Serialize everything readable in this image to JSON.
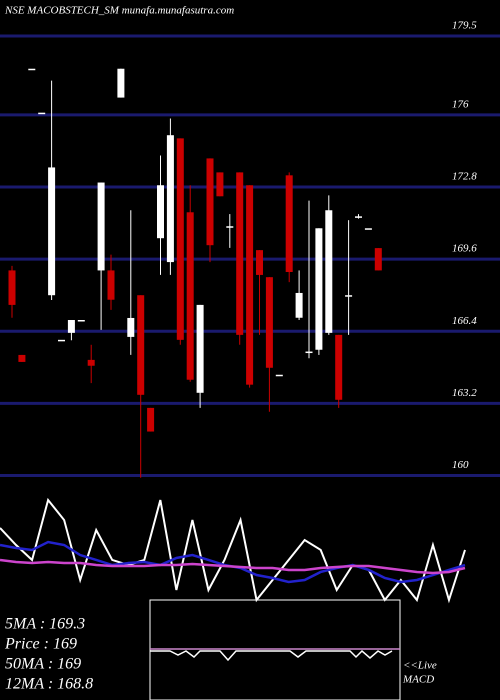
{
  "chart_data": [
    {
      "type": "candlestick",
      "title": "NSE MACOBSTECH_SM munafa.munafasutra.com",
      "open": [
        169.1,
        165.35,
        178.05,
        176.1,
        168.0,
        166.02,
        166.33,
        166.9,
        165.13,
        169.1,
        169.1,
        176.77,
        166.15,
        168.0,
        163.0,
        170.53,
        169.47,
        174.96,
        171.68,
        163.67,
        174.07,
        173.45,
        171.06,
        173.45,
        172.88,
        170.0,
        168.8,
        164.47,
        173.32,
        167.0,
        165.5,
        165.58,
        166.33,
        166.24,
        168.0,
        171.5,
        170.97,
        170.09
      ],
      "high": [
        169.3,
        165.35,
        178.05,
        176.1,
        177.52,
        166.02,
        166.9,
        166.9,
        165.8,
        173.0,
        169.8,
        178.05,
        171.77,
        168.0,
        163.0,
        174.2,
        175.84,
        174.96,
        172.88,
        167.57,
        174.07,
        173.45,
        171.6,
        173.45,
        172.88,
        170.0,
        168.8,
        164.47,
        173.45,
        169.1,
        172.2,
        170.97,
        172.43,
        166.24,
        171.33,
        171.6,
        170.97,
        170.09
      ],
      "low": [
        167.0,
        165.04,
        178.05,
        176.1,
        167.79,
        166.02,
        166.0,
        166.9,
        164.1,
        166.46,
        167.35,
        176.77,
        165.35,
        159.9,
        161.95,
        168.9,
        168.9,
        165.8,
        164.16,
        163.0,
        169.47,
        172.39,
        170.1,
        165.8,
        163.9,
        166.24,
        162.83,
        164.47,
        168.58,
        166.9,
        165.2,
        165.35,
        166.24,
        163.0,
        166.24,
        171.4,
        170.97,
        169.1
      ],
      "close": [
        167.57,
        165.04,
        178.05,
        176.1,
        173.67,
        166.02,
        166.9,
        166.9,
        164.87,
        173.0,
        167.8,
        178.05,
        166.99,
        163.58,
        161.95,
        172.88,
        175.1,
        166.02,
        164.25,
        167.57,
        170.22,
        172.39,
        171.06,
        166.24,
        164.03,
        168.9,
        164.78,
        164.47,
        169.03,
        168.1,
        165.5,
        170.97,
        171.77,
        163.36,
        168.0,
        171.5,
        170.97,
        169.1
      ],
      "up_color": "#ffffff",
      "down_color": "#cc0000",
      "ylim": [
        159.8,
        181.1
      ],
      "yticks": [
        179.5,
        176,
        172.8,
        169.6,
        166.4,
        163.2,
        160
      ],
      "grid": true,
      "grid_color": "#1a1a6e"
    },
    {
      "type": "line",
      "ylim": [
        0,
        100
      ],
      "series": [
        {
          "color": "#ffffff",
          "values": [
            65.5,
            50,
            36.4,
            90.9,
            72.7,
            18.2,
            63.6,
            36.4,
            31.8,
            36.4,
            90.9,
            9.1,
            72.7,
            9.1,
            36.4,
            72.7,
            0,
            18.2,
            36.4,
            54.5,
            45.5,
            9.1,
            31.8,
            27.3,
            0,
            18.2,
            0,
            50,
            0,
            45.5
          ]
        },
        {
          "color": "#2222cc",
          "values": [
            50,
            47.3,
            45.5,
            52.7,
            50,
            40.9,
            36.4,
            31.8,
            33.6,
            34.5,
            31.8,
            38.2,
            40.9,
            36.4,
            31.8,
            29.1,
            22.7,
            20,
            16.4,
            18.2,
            25.5,
            29.1,
            31.8,
            27.3,
            20,
            16.4,
            18.2,
            22.7,
            27.3,
            31.8
          ]
        },
        {
          "color": "#cc44cc",
          "values": [
            36.4,
            34.5,
            33.6,
            34.5,
            33.6,
            33.6,
            31.8,
            30.9,
            30.9,
            30.9,
            31.8,
            31.8,
            32.7,
            31.8,
            30.9,
            30,
            29.1,
            29.1,
            27.3,
            27.3,
            29.1,
            30,
            30.9,
            30.9,
            29.1,
            27.3,
            25.5,
            24.5,
            25.5,
            29.1
          ]
        }
      ],
      "stats": [
        "5MA : 169.3",
        "Price  : 169",
        "50MA : 169",
        "12MA : 168.8"
      ],
      "macd_label": [
        "<<Live",
        "MACD"
      ]
    }
  ]
}
